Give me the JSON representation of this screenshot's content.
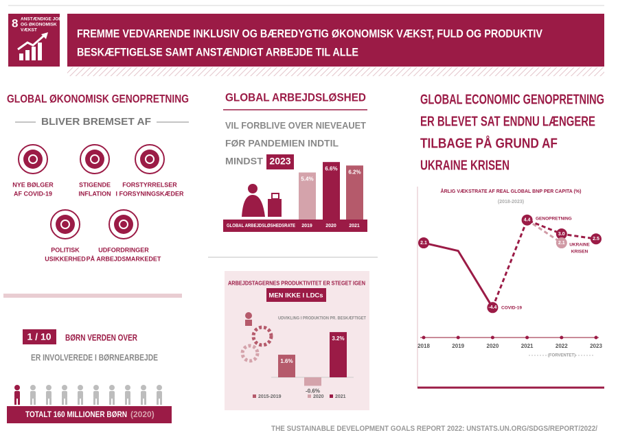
{
  "header": {
    "goal_number": "8",
    "goal_label": [
      "ANSTÆNDIGE JOBS",
      "OG ØKONOMISK",
      "VÆKST"
    ],
    "title_lines": [
      "FREMME VEDVARENDE INKLUSIV OG BÆREDYGTIG ØKONOMISK VÆKST, FULD OG PRODUKTIV",
      "BESKÆFTIGELSE SAMT ANSTÆNDIGT ARBEJDE TIL ALLE"
    ]
  },
  "recovery": {
    "title": "GLOBAL ØKONOMISK GENOPRETNING",
    "subtitle": "BLIVER BREMSET AF",
    "factors": [
      {
        "label": [
          "NYE BØLGER",
          "AF COVID-19"
        ]
      },
      {
        "label": [
          "STIGENDE",
          "INFLATION"
        ]
      },
      {
        "label": [
          "FORSTYRRELSER",
          "I FORSYNINGSKÆDER"
        ]
      },
      {
        "label": [
          "POLITISK",
          "USIKKERHED"
        ]
      },
      {
        "label": [
          "UDFORDRINGER",
          "PÅ ARBEJDSMARKEDET"
        ]
      }
    ]
  },
  "child_labour": {
    "ratio": "1 / 10",
    "line1": "BØRN VERDEN OVER",
    "line2": "ER INVOLVEREDE I BØRNEARBEJDE",
    "total": "TOTALT 160 MILLIONER BØRN",
    "year": "(2020)"
  },
  "unemployment": {
    "title": "GLOBAL ARBEJDSLØSHED",
    "text_lines": [
      "VIL FORBLIVE OVER NIEVEAUET",
      "FØR PANDEMIEN INDTIL",
      "MINDST"
    ],
    "highlight": "2023",
    "chart_data": {
      "type": "bar",
      "label": "GLOBAL ARBEJDSLØSHEDSRATE",
      "categories": [
        "2019",
        "2020",
        "2021"
      ],
      "values": [
        5.4,
        6.6,
        6.2
      ],
      "value_labels": [
        "5.4%",
        "6.6%",
        "6.2%"
      ],
      "colors": [
        "#d4a3ab",
        "#9b1b46",
        "#b55a6b"
      ]
    }
  },
  "productivity": {
    "title": "ARBEJDSTAGERNES PRODUKTIVITET ER STEGET IGEN",
    "highlight": "MEN IKKE I LDCs",
    "chart_data": {
      "type": "bar",
      "subtitle": "UDVIKLING I PRODUKTION PR. BESKÆFTIGET",
      "categories": [
        "2015-2019",
        "2020",
        "2021"
      ],
      "values": [
        1.6,
        -0.6,
        3.2
      ],
      "value_labels": [
        "1.6%",
        "-0.6%",
        "3.2%"
      ],
      "colors": [
        "#b55a6b",
        "#d4a3ab",
        "#9b1b46"
      ]
    }
  },
  "growth": {
    "title_lines": [
      "GLOBAL ECONOMIC GENOPRETNING",
      "ER BLEVET SAT ENDNU LÆNGERE",
      "TILBAGE PÅ GRUND AF",
      "UKRAINE KRISEN"
    ],
    "chart_data": {
      "type": "line",
      "title": "ÅRLIG VÆKSTRATE AF REAL GLOBAL BNP PER CAPITA (%)",
      "subtitle": "(2018-2023)",
      "x": [
        2018,
        2019,
        2020,
        2021,
        2022,
        2023
      ],
      "series": [
        {
          "color": "#9b1b46",
          "dashed": false,
          "values": [
            2.1,
            1.3,
            -4.4,
            null,
            null,
            null
          ],
          "value_labels": [
            "2.1",
            null,
            "-4.4",
            null,
            null,
            null
          ]
        },
        {
          "color": "#9b1b46",
          "dashed": true,
          "values": [
            null,
            null,
            -4.4,
            4.4,
            3.0,
            2.5
          ],
          "value_labels": [
            null,
            null,
            null,
            "4.4",
            "3.0",
            "2.5"
          ]
        },
        {
          "color": "#d09aa5",
          "dashed": true,
          "values": [
            null,
            null,
            null,
            4.4,
            2.1,
            null
          ],
          "value_labels": [
            null,
            null,
            null,
            null,
            "2.1",
            null
          ]
        }
      ],
      "annotations": [
        {
          "text": [
            "COVID-19"
          ]
        },
        {
          "text": [
            "GENOPRETNING"
          ]
        },
        {
          "text": [
            "UKRAINE",
            "KRISEN"
          ]
        }
      ],
      "forecast_label": "(FORVENTET)"
    }
  },
  "source": "THE SUSTAINABLE DEVELOPMENT GOALS REPORT 2022: UNSTATS.UN.ORG/SDGS/REPORT/2022/"
}
